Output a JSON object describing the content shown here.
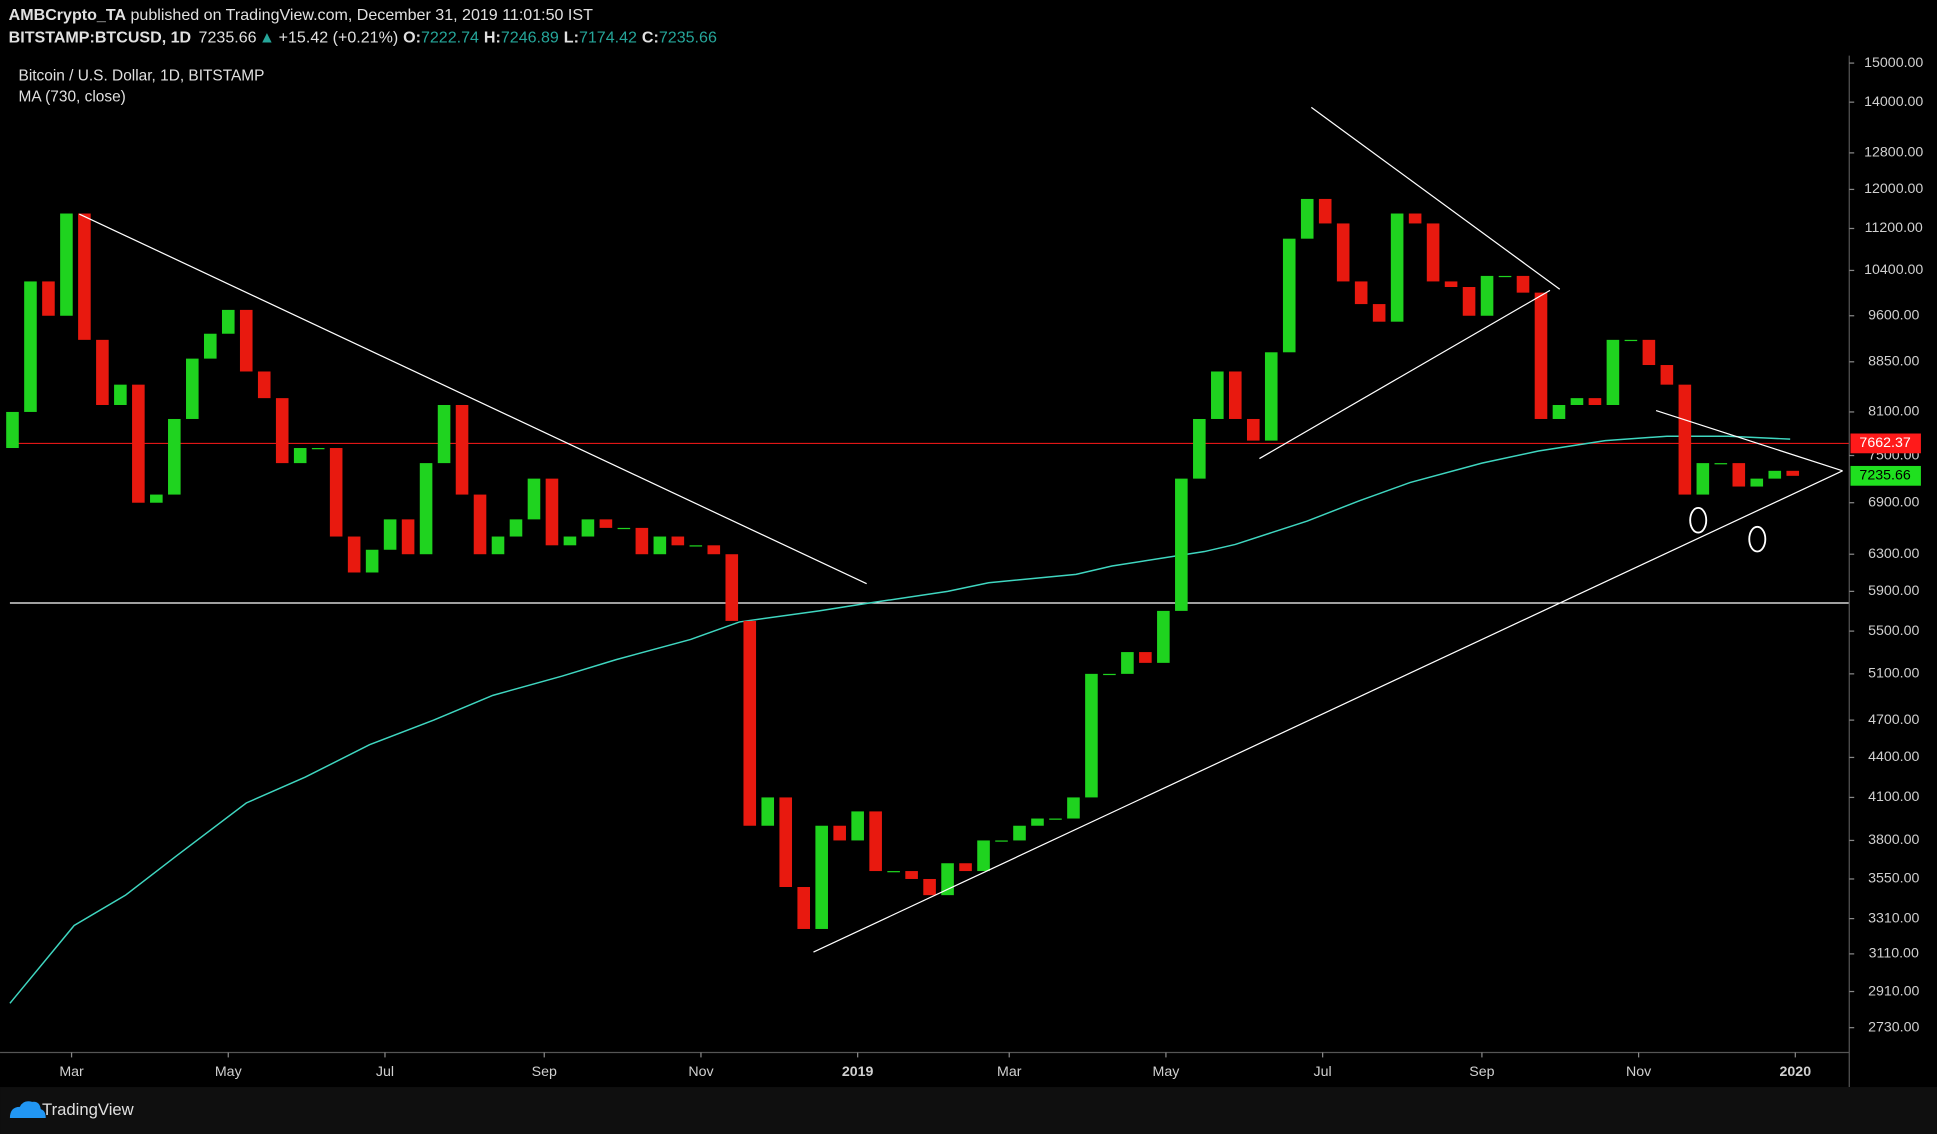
{
  "header": {
    "author": "AMBCrypto_TA",
    "published": " published on TradingView.com, December 31, 2019 11:01:50 IST",
    "symbol": "BITSTAMP:BTCUSD, 1D",
    "price": "7235.66",
    "arrow": "▲",
    "change": "+15.42 (+0.21%)",
    "ohlc": [
      {
        "key": "O:",
        "value": "7222.74"
      },
      {
        "key": "H:",
        "value": "7246.89"
      },
      {
        "key": "L:",
        "value": "7174.42"
      },
      {
        "key": "C:",
        "value": "7235.66"
      }
    ]
  },
  "footer": {
    "brand": "TradingView"
  },
  "chart_data": {
    "type": "candlestick",
    "title": "Bitcoin / U.S. Dollar, 1D, BITSTAMP",
    "x": [
      36,
      43,
      50,
      57,
      64,
      71,
      78,
      85,
      92,
      99,
      106,
      113,
      120,
      127,
      134,
      141,
      148,
      155,
      162,
      169,
      176,
      183,
      190,
      197,
      204,
      211,
      218,
      225,
      232,
      239,
      246,
      253,
      260,
      267,
      274,
      281,
      288,
      295,
      302,
      309,
      316,
      323,
      330,
      337,
      344,
      351,
      358,
      365,
      372,
      379,
      386,
      393,
      400,
      407,
      414,
      421,
      428,
      435,
      442,
      449,
      456,
      463,
      470,
      477,
      484,
      491,
      498,
      505,
      512,
      519,
      526,
      533,
      540,
      547,
      554,
      561,
      568,
      575,
      582,
      589,
      596,
      603,
      610,
      617,
      624,
      631,
      638,
      645,
      652,
      659,
      666,
      673,
      680,
      687,
      694,
      701,
      708,
      715,
      722,
      729
    ],
    "open": [
      7600,
      8100,
      10200,
      9600,
      11500,
      9200,
      8200,
      8500,
      6900,
      7000,
      8000,
      8900,
      9300,
      9700,
      8700,
      8300,
      7400,
      7600,
      7600,
      6500,
      6100,
      6350,
      6700,
      6300,
      7400,
      8200,
      7000,
      6300,
      6500,
      6700,
      7200,
      6400,
      6500,
      6700,
      6600,
      6600,
      6300,
      6500,
      6400,
      6400,
      6300,
      5600,
      3900,
      4100,
      3500,
      3250,
      3900,
      3800,
      4000,
      3600,
      3600,
      3550,
      3450,
      3650,
      3600,
      3800,
      3800,
      3900,
      3950,
      3950,
      4100,
      5100,
      5100,
      5300,
      5200,
      5700,
      7200,
      8000,
      8700,
      8000,
      7700,
      9000,
      11000,
      11800,
      11300,
      10200,
      9800,
      9500,
      11500,
      11300,
      10200,
      10100,
      9600,
      10300,
      10300,
      10000,
      8000,
      8200,
      8300,
      8200,
      9200,
      9200,
      8800,
      8500,
      7000,
      7400,
      7400,
      7100,
      7200,
      7300
    ],
    "close": [
      8100,
      10200,
      9600,
      11500,
      9200,
      8200,
      8500,
      6900,
      7000,
      8000,
      8900,
      9300,
      9700,
      8700,
      8300,
      7400,
      7600,
      7600,
      6500,
      6100,
      6350,
      6700,
      6300,
      7400,
      8200,
      7000,
      6300,
      6500,
      6700,
      7200,
      6400,
      6500,
      6700,
      6600,
      6600,
      6300,
      6500,
      6400,
      6400,
      6300,
      5600,
      3900,
      4100,
      3500,
      3250,
      3900,
      3800,
      4000,
      3600,
      3600,
      3550,
      3450,
      3650,
      3600,
      3800,
      3800,
      3900,
      3950,
      3950,
      4100,
      5100,
      5100,
      5300,
      5200,
      5700,
      7200,
      8000,
      8700,
      8000,
      7700,
      9000,
      11000,
      11800,
      11300,
      10200,
      9800,
      9500,
      11500,
      11300,
      10200,
      10100,
      9600,
      10300,
      10300,
      10000,
      8000,
      8200,
      8300,
      8200,
      9200,
      9200,
      8800,
      8500,
      7000,
      7400,
      7400,
      7100,
      7200,
      7300,
      7235.66
    ],
    "up_color": "#1fd31f",
    "down_color": "#e8190f",
    "ma": {
      "name": "MA (730, close)",
      "color": "#3fd6c0",
      "x": [
        35,
        60,
        80,
        100,
        127,
        150,
        175,
        200,
        223,
        250,
        271,
        300,
        319,
        350,
        367,
        400,
        416,
        450,
        464,
        500,
        512,
        540,
        560,
        580,
        608,
        630,
        656,
        680,
        704,
        728
      ],
      "values": [
        2850,
        3270,
        3450,
        3700,
        4060,
        4250,
        4500,
        4700,
        4910,
        5080,
        5230,
        5420,
        5590,
        5700,
        5770,
        5900,
        5990,
        6080,
        6170,
        6330,
        6410,
        6680,
        6920,
        7150,
        7400,
        7560,
        7700,
        7760,
        7760,
        7720
      ]
    },
    "xlim": [
      35,
      751
    ],
    "ylim": [
      2613,
      15200
    ],
    "log_scale": true,
    "xticks": [
      {
        "value": 59,
        "label": "Mar"
      },
      {
        "value": 120,
        "label": "May"
      },
      {
        "value": 181,
        "label": "Jul"
      },
      {
        "value": 243,
        "label": "Sep"
      },
      {
        "value": 304,
        "label": "Nov"
      },
      {
        "value": 365,
        "label": "2019"
      },
      {
        "value": 424,
        "label": "Mar"
      },
      {
        "value": 485,
        "label": "May"
      },
      {
        "value": 546,
        "label": "Jul"
      },
      {
        "value": 608,
        "label": "Sep"
      },
      {
        "value": 669,
        "label": "Nov"
      },
      {
        "value": 730,
        "label": "2020"
      }
    ],
    "yticks": [
      {
        "value": 15000,
        "label": "15000.00"
      },
      {
        "value": 14000,
        "label": "14000.00"
      },
      {
        "value": 12800,
        "label": "12800.00"
      },
      {
        "value": 12000,
        "label": "12000.00"
      },
      {
        "value": 11200,
        "label": "11200.00"
      },
      {
        "value": 10400,
        "label": "10400.00"
      },
      {
        "value": 9600,
        "label": "9600.00"
      },
      {
        "value": 8850,
        "label": "8850.00"
      },
      {
        "value": 8100,
        "label": "8100.00"
      },
      {
        "value": 7500,
        "label": "7500.00"
      },
      {
        "value": 6900,
        "label": "6900.00"
      },
      {
        "value": 6300,
        "label": "6300.00"
      },
      {
        "value": 5900,
        "label": "5900.00"
      },
      {
        "value": 5500,
        "label": "5500.00"
      },
      {
        "value": 5100,
        "label": "5100.00"
      },
      {
        "value": 4700,
        "label": "4700.00"
      },
      {
        "value": 4400,
        "label": "4400.00"
      },
      {
        "value": 4100,
        "label": "4100.00"
      },
      {
        "value": 3800,
        "label": "3800.00"
      },
      {
        "value": 3550,
        "label": "3550.00"
      },
      {
        "value": 3310,
        "label": "3310.00"
      },
      {
        "value": 3110,
        "label": "3110.00"
      },
      {
        "value": 2910,
        "label": "2910.00"
      },
      {
        "value": 2730,
        "label": "2730.00"
      }
    ],
    "price_lines": [
      {
        "value": 7662.37,
        "label": "7662.37",
        "color": "#ff1a1a",
        "line": true
      },
      {
        "value": 7235.66,
        "label": "7235.66",
        "color": "#1fe01f",
        "line": false
      }
    ],
    "hline": {
      "value": 5780,
      "color": "#ffffff"
    },
    "trendlines": [
      [
        [
          62,
          11490
        ],
        [
          368.5,
          5980
        ]
      ],
      [
        [
          541.6,
          13870
        ],
        [
          638.3,
          10060
        ]
      ],
      [
        [
          521.4,
          7460
        ],
        [
          634.5,
          10040
        ]
      ],
      [
        [
          347.8,
          3120
        ],
        [
          748.4,
          7300
        ]
      ],
      [
        [
          675.8,
          8120
        ],
        [
          748.4,
          7300
        ]
      ]
    ],
    "circles": [
      [
        692.2,
        6690
      ],
      [
        715.2,
        6470
      ]
    ]
  }
}
